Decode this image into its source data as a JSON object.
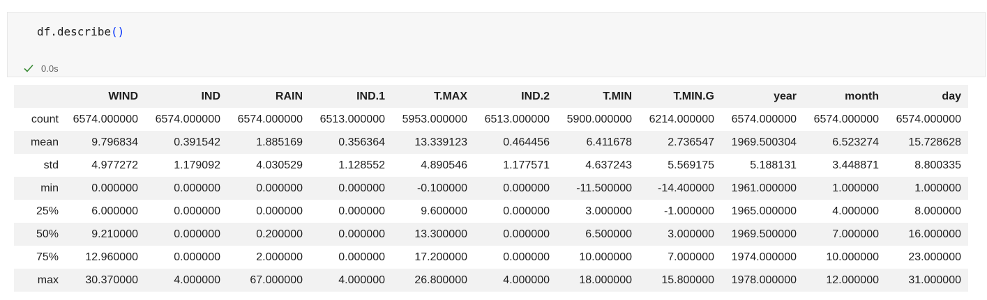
{
  "cell": {
    "code_prefix": "df.describe",
    "code_paren": "()",
    "exec_time": "0.0s"
  },
  "table": {
    "columns": [
      "WIND",
      "IND",
      "RAIN",
      "IND.1",
      "T.MAX",
      "IND.2",
      "T.MIN",
      "T.MIN.G",
      "year",
      "month",
      "day"
    ],
    "rows": [
      {
        "index": "count",
        "values": [
          "6574.000000",
          "6574.000000",
          "6574.000000",
          "6513.000000",
          "5953.000000",
          "6513.000000",
          "5900.000000",
          "6214.000000",
          "6574.000000",
          "6574.000000",
          "6574.000000"
        ]
      },
      {
        "index": "mean",
        "values": [
          "9.796834",
          "0.391542",
          "1.885169",
          "0.356364",
          "13.339123",
          "0.464456",
          "6.411678",
          "2.736547",
          "1969.500304",
          "6.523274",
          "15.728628"
        ]
      },
      {
        "index": "std",
        "values": [
          "4.977272",
          "1.179092",
          "4.030529",
          "1.128552",
          "4.890546",
          "1.177571",
          "4.637243",
          "5.569175",
          "5.188131",
          "3.448871",
          "8.800335"
        ]
      },
      {
        "index": "min",
        "values": [
          "0.000000",
          "0.000000",
          "0.000000",
          "0.000000",
          "-0.100000",
          "0.000000",
          "-11.500000",
          "-14.400000",
          "1961.000000",
          "1.000000",
          "1.000000"
        ]
      },
      {
        "index": "25%",
        "values": [
          "6.000000",
          "0.000000",
          "0.000000",
          "0.000000",
          "9.600000",
          "0.000000",
          "3.000000",
          "-1.000000",
          "1965.000000",
          "4.000000",
          "8.000000"
        ]
      },
      {
        "index": "50%",
        "values": [
          "9.210000",
          "0.000000",
          "0.200000",
          "0.000000",
          "13.300000",
          "0.000000",
          "6.500000",
          "3.000000",
          "1969.500000",
          "7.000000",
          "16.000000"
        ]
      },
      {
        "index": "75%",
        "values": [
          "12.960000",
          "0.000000",
          "2.000000",
          "0.000000",
          "17.200000",
          "0.000000",
          "10.000000",
          "7.000000",
          "1974.000000",
          "10.000000",
          "23.000000"
        ]
      },
      {
        "index": "max",
        "values": [
          "30.370000",
          "4.000000",
          "67.000000",
          "4.000000",
          "26.800000",
          "4.000000",
          "18.000000",
          "15.800000",
          "1978.000000",
          "12.000000",
          "31.000000"
        ]
      }
    ]
  },
  "colors": {
    "success_check": "#388a34",
    "paren": "#0431fa",
    "stripe": "#f2f2f2"
  },
  "icons": {
    "status": "check-icon"
  }
}
